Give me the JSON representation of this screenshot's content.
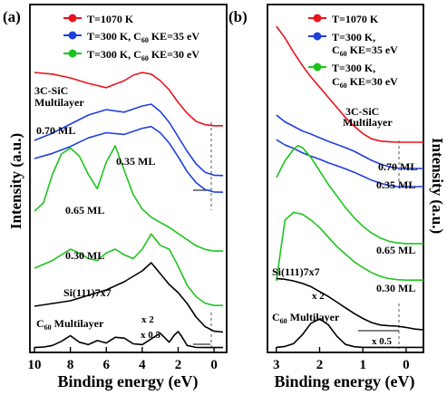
{
  "chart_data": [
    {
      "type": "line",
      "panel_label": "(a)",
      "xlabel": "Binding energy (eV)",
      "ylabel": "Intensity (a.u.)",
      "x_ticks": [
        "10",
        "8",
        "6",
        "4",
        "2",
        "0"
      ],
      "xlim": [
        10,
        -0.5
      ],
      "x_reversed": true,
      "dashed_marker_x": 0,
      "legend": [
        {
          "label_main": "T=1070 K",
          "label_sub": "",
          "color": "#e8141c"
        },
        {
          "label_main": "T=300 K, C",
          "label_sub": "60",
          "label_tail": " KE=35 eV",
          "color": "#1f3fdc"
        },
        {
          "label_main": "T=300 K, C",
          "label_sub": "60",
          "label_tail": " KE=30 eV",
          "color": "#1dc41d"
        }
      ],
      "annotations": {
        "sic_line1": "3C-SiC",
        "sic_line2": "Multilayer",
        "blue_hi": "0.70 ML",
        "blue_lo": "0.35 ML",
        "green_hi": "0.65 ML",
        "green_lo": "0.30 ML",
        "si": "Si(111)7x7",
        "x2": "x 2",
        "c60_main": "C",
        "c60_sub": "60",
        "c60_tail": " Multilayer",
        "x05": "x 0.5"
      },
      "series": [
        {
          "name": "3C-SiC Multilayer",
          "color": "#e8141c",
          "x": [
            10,
            9,
            8,
            7,
            6,
            5,
            4.5,
            4,
            3.5,
            3,
            2.5,
            2,
            1.5,
            1,
            0.5,
            0,
            -0.5
          ],
          "y": [
            1.0,
            0.97,
            0.9,
            0.8,
            0.72,
            0.85,
            0.95,
            1.0,
            0.97,
            0.85,
            0.68,
            0.45,
            0.25,
            0.1,
            0.04,
            0.02,
            0.02
          ]
        },
        {
          "name": "0.70 ML",
          "color": "#1f3fdc",
          "x": [
            10,
            9,
            8,
            7,
            6,
            5,
            4,
            3.5,
            3,
            2.5,
            2,
            1.5,
            1,
            0.5,
            0,
            -0.5
          ],
          "y": [
            1.0,
            1.2,
            1.45,
            1.7,
            1.85,
            1.78,
            1.95,
            2.0,
            1.8,
            1.5,
            1.1,
            0.7,
            0.35,
            0.12,
            0.04,
            0.03
          ]
        },
        {
          "name": "0.35 ML",
          "color": "#1f3fdc",
          "x": [
            10,
            9,
            8,
            7,
            6,
            5,
            4,
            3.5,
            3,
            2.5,
            2,
            1.5,
            1,
            0.5,
            0,
            -0.5
          ],
          "y": [
            1.0,
            1.15,
            1.35,
            1.6,
            1.75,
            1.7,
            1.88,
            1.93,
            1.75,
            1.45,
            1.05,
            0.62,
            0.3,
            0.1,
            0.03,
            0.02
          ]
        },
        {
          "name": "0.65 ML",
          "color": "#1dc41d",
          "x": [
            10,
            9.5,
            9,
            8.5,
            8,
            7.5,
            7,
            6.5,
            6,
            5.5,
            5,
            4.5,
            4,
            3.5,
            3,
            2.5,
            2,
            1.5,
            1,
            0.5,
            0,
            -0.5
          ],
          "y": [
            1.0,
            1.2,
            1.9,
            2.4,
            2.55,
            2.35,
            1.9,
            1.55,
            2.2,
            2.6,
            2.0,
            1.4,
            1.05,
            0.85,
            0.72,
            0.6,
            0.45,
            0.3,
            0.15,
            0.06,
            0.02,
            0.02
          ]
        },
        {
          "name": "0.30 ML",
          "color": "#1dc41d",
          "x": [
            10,
            9,
            8,
            7.5,
            7,
            6.5,
            6,
            5.5,
            5,
            4.5,
            4,
            3.5,
            3,
            2.5,
            2,
            1.5,
            1,
            0.5,
            0,
            -0.5
          ],
          "y": [
            1.0,
            1.2,
            1.5,
            1.4,
            1.25,
            1.2,
            1.4,
            1.5,
            1.35,
            1.25,
            1.5,
            1.9,
            1.6,
            1.5,
            1.05,
            0.55,
            0.25,
            0.08,
            0.02,
            0.02
          ]
        },
        {
          "name": "Si(111)7x7",
          "color": "#000000",
          "x": [
            10,
            9,
            8,
            7,
            6,
            5,
            4,
            3.5,
            3,
            2.5,
            2,
            1.5,
            1,
            0.5,
            0,
            -0.5
          ],
          "y": [
            1.0,
            1.1,
            1.2,
            1.4,
            1.6,
            1.9,
            2.3,
            2.6,
            2.2,
            1.8,
            1.5,
            1.1,
            0.6,
            0.25,
            0.08,
            0.05
          ]
        },
        {
          "name": "C60 Multilayer",
          "color": "#000000",
          "x": [
            10,
            9.5,
            9,
            8.5,
            8,
            7.5,
            7,
            6.5,
            6,
            5.5,
            5,
            4.5,
            4,
            3.5,
            3,
            2.5,
            2.2,
            2,
            1.8,
            1.5,
            1,
            0.5,
            0,
            -0.5
          ],
          "y": [
            0.02,
            0.05,
            0.15,
            0.4,
            0.75,
            0.35,
            0.2,
            0.45,
            0.3,
            0.65,
            0.6,
            0.25,
            0.2,
            0.55,
            0.9,
            0.35,
            0.8,
            1.0,
            0.7,
            0.15,
            0.03,
            0.02,
            0.02,
            0.02
          ]
        }
      ]
    },
    {
      "type": "line",
      "panel_label": "(b)",
      "xlabel": "Binding energy (eV)",
      "ylabel": "Intensity (a.u.)",
      "x_ticks": [
        "3",
        "2",
        "1",
        "0"
      ],
      "xlim": [
        3.1,
        -0.4
      ],
      "x_reversed": true,
      "dashed_marker_x": 0,
      "legend": [
        {
          "label_main": "T=1070 K",
          "color": "#e8141c"
        },
        {
          "label_main": "T=300 K,",
          "label_line2_main": "C",
          "label_line2_sub": "60",
          "label_line2_tail": " KE=35 eV",
          "color": "#1f3fdc"
        },
        {
          "label_main": "T=300 K,",
          "label_line2_main": "C",
          "label_line2_sub": "60",
          "label_line2_tail": " KE=30 eV",
          "color": "#1dc41d"
        }
      ],
      "annotations": {
        "sic_line1": "3C-SiC",
        "sic_line2": "Multilayer",
        "blue_hi": "0.70 ML",
        "blue_lo": "0.35 ML",
        "green_hi": "0.65 ML",
        "green_lo": "0.30 ML",
        "si": "Si(111)7x7",
        "x2": "x 2",
        "c60_main": "C",
        "c60_sub": "60",
        "c60_tail": " Multilayer",
        "x05": "x 0.5"
      },
      "series": [
        {
          "name": "3C-SiC Multilayer",
          "color": "#e8141c",
          "x": [
            3.0,
            2.8,
            2.6,
            2.4,
            2.2,
            2.0,
            1.8,
            1.6,
            1.4,
            1.2,
            1.0,
            0.8,
            0.6,
            0.4,
            0.2,
            0,
            -0.2,
            -0.4
          ],
          "y": [
            4.0,
            3.6,
            3.1,
            2.65,
            2.25,
            1.9,
            1.55,
            1.2,
            0.85,
            0.55,
            0.3,
            0.12,
            0.04,
            0.02,
            0.0,
            0.0,
            0.0,
            0.0
          ]
        },
        {
          "name": "0.70 ML",
          "color": "#1f3fdc",
          "x": [
            3.0,
            2.8,
            2.6,
            2.4,
            2.2,
            2.0,
            1.8,
            1.6,
            1.4,
            1.2,
            1.0,
            0.8,
            0.6,
            0.4,
            0.2,
            0,
            -0.2,
            -0.4
          ],
          "y": [
            1.2,
            1.05,
            0.95,
            0.85,
            0.78,
            0.7,
            0.62,
            0.55,
            0.48,
            0.4,
            0.3,
            0.2,
            0.12,
            0.06,
            0.03,
            0.02,
            0.02,
            0.02
          ]
        },
        {
          "name": "0.35 ML",
          "color": "#1f3fdc",
          "x": [
            3.0,
            2.8,
            2.6,
            2.4,
            2.2,
            2.0,
            1.8,
            1.6,
            1.4,
            1.2,
            1.0,
            0.8,
            0.6,
            0.4,
            0.2,
            0,
            -0.2,
            -0.4
          ],
          "y": [
            1.1,
            0.98,
            0.9,
            0.8,
            0.72,
            0.65,
            0.57,
            0.5,
            0.43,
            0.35,
            0.26,
            0.17,
            0.1,
            0.05,
            0.02,
            0.02,
            0.02,
            0.02
          ]
        },
        {
          "name": "0.65 ML",
          "color": "#1dc41d",
          "x": [
            3.0,
            2.8,
            2.6,
            2.5,
            2.4,
            2.2,
            2.0,
            1.8,
            1.6,
            1.4,
            1.2,
            1.0,
            0.8,
            0.6,
            0.4,
            0.2,
            0,
            -0.2,
            -0.4
          ],
          "y": [
            2.0,
            2.5,
            2.85,
            2.95,
            2.9,
            2.6,
            2.2,
            1.8,
            1.45,
            1.1,
            0.8,
            0.55,
            0.35,
            0.2,
            0.1,
            0.05,
            0.03,
            0.03,
            0.03
          ]
        },
        {
          "name": "0.30 ML",
          "color": "#1dc41d",
          "x": [
            3.0,
            2.8,
            2.6,
            2.4,
            2.2,
            2.0,
            1.8,
            1.6,
            1.4,
            1.2,
            1.0,
            0.8,
            0.6,
            0.4,
            0.2,
            0,
            -0.2,
            -0.4
          ],
          "y": [
            0.0,
            1.6,
            1.8,
            1.75,
            1.6,
            1.4,
            1.15,
            0.9,
            0.7,
            0.5,
            0.35,
            0.22,
            0.12,
            0.06,
            0.03,
            0.02,
            0.02,
            0.02
          ]
        },
        {
          "name": "Si(111)7x7",
          "color": "#000000",
          "x": [
            3.0,
            2.8,
            2.6,
            2.4,
            2.2,
            2.0,
            1.8,
            1.6,
            1.4,
            1.2,
            1.0,
            0.8,
            0.6,
            0.4,
            0.2,
            0,
            -0.2,
            -0.4
          ],
          "y": [
            3.2,
            3.15,
            3.05,
            2.9,
            2.7,
            2.4,
            2.1,
            1.75,
            1.4,
            1.05,
            0.75,
            0.5,
            0.35,
            0.3,
            0.28,
            0.2,
            0.1,
            0.05
          ]
        },
        {
          "name": "C60 Multilayer",
          "color": "#000000",
          "x": [
            3.0,
            2.8,
            2.6,
            2.4,
            2.2,
            2.0,
            1.8,
            1.6,
            1.4,
            1.2,
            1.0,
            0.8,
            0.6,
            0.4,
            0.2,
            0,
            -0.2,
            -0.4
          ],
          "y": [
            0.02,
            0.05,
            0.15,
            0.45,
            0.85,
            1.0,
            0.8,
            0.4,
            0.12,
            0.04,
            0.02,
            0.02,
            0.02,
            0.02,
            0.02,
            0.02,
            0.02,
            0.02
          ]
        }
      ]
    }
  ]
}
